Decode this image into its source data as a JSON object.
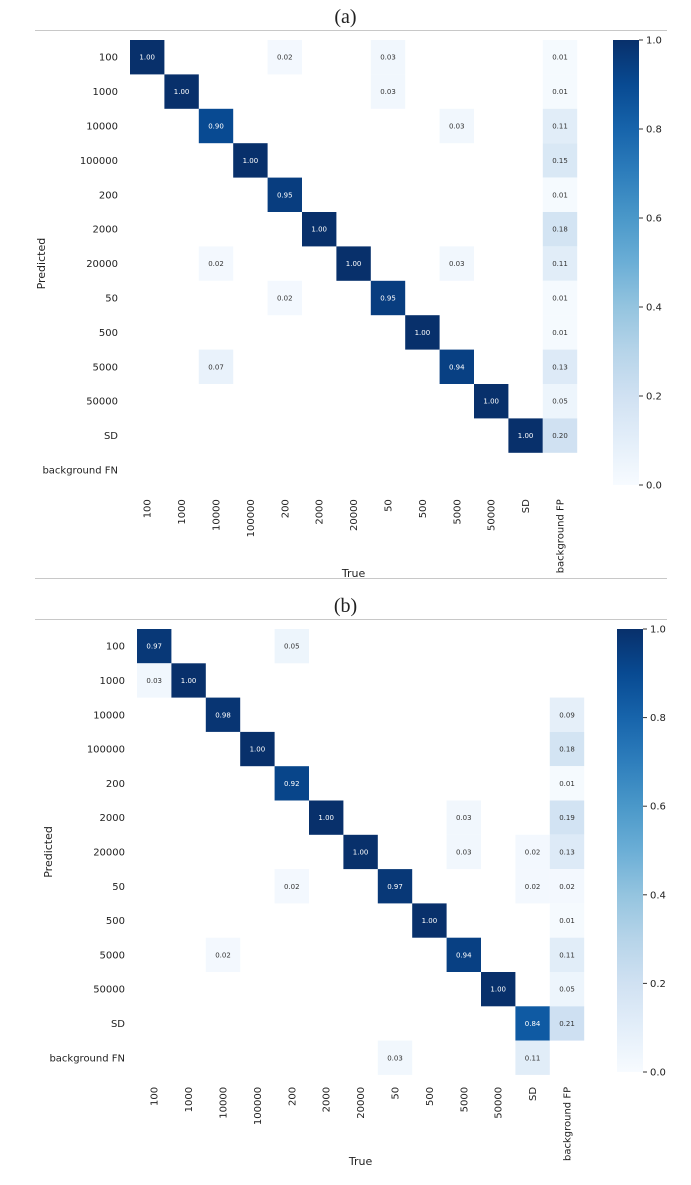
{
  "panels": [
    {
      "label": "(a)"
    },
    {
      "label": "(b)"
    }
  ],
  "chart_data": [
    {
      "type": "heatmap",
      "xlabel": "True",
      "ylabel": "Predicted",
      "x_categories": [
        "100",
        "1000",
        "10000",
        "100000",
        "200",
        "2000",
        "20000",
        "50",
        "500",
        "5000",
        "50000",
        "SD",
        "background FP"
      ],
      "y_categories": [
        "100",
        "1000",
        "10000",
        "100000",
        "200",
        "2000",
        "20000",
        "50",
        "500",
        "5000",
        "50000",
        "SD",
        "background FN"
      ],
      "colormap": "Blues",
      "colorbar": {
        "min": 0.0,
        "max": 1.0,
        "ticks": [
          "0.0",
          "0.2",
          "0.4",
          "0.6",
          "0.8",
          "1.0"
        ]
      },
      "cells": [
        [
          0,
          0,
          "1.00"
        ],
        [
          0,
          4,
          "0.02"
        ],
        [
          0,
          7,
          "0.03"
        ],
        [
          0,
          12,
          "0.01"
        ],
        [
          1,
          1,
          "1.00"
        ],
        [
          1,
          7,
          "0.03"
        ],
        [
          1,
          12,
          "0.01"
        ],
        [
          2,
          2,
          "0.90"
        ],
        [
          2,
          9,
          "0.03"
        ],
        [
          2,
          12,
          "0.11"
        ],
        [
          3,
          3,
          "1.00"
        ],
        [
          3,
          12,
          "0.15"
        ],
        [
          4,
          4,
          "0.95"
        ],
        [
          4,
          12,
          "0.01"
        ],
        [
          5,
          5,
          "1.00"
        ],
        [
          5,
          12,
          "0.18"
        ],
        [
          6,
          2,
          "0.02"
        ],
        [
          6,
          6,
          "1.00"
        ],
        [
          6,
          9,
          "0.03"
        ],
        [
          6,
          12,
          "0.11"
        ],
        [
          7,
          4,
          "0.02"
        ],
        [
          7,
          7,
          "0.95"
        ],
        [
          7,
          12,
          "0.01"
        ],
        [
          8,
          8,
          "1.00"
        ],
        [
          8,
          12,
          "0.01"
        ],
        [
          9,
          2,
          "0.07"
        ],
        [
          9,
          9,
          "0.94"
        ],
        [
          9,
          12,
          "0.13"
        ],
        [
          10,
          10,
          "1.00"
        ],
        [
          10,
          12,
          "0.05"
        ],
        [
          11,
          11,
          "1.00"
        ],
        [
          11,
          12,
          "0.20"
        ]
      ]
    },
    {
      "type": "heatmap",
      "xlabel": "True",
      "ylabel": "Predicted",
      "x_categories": [
        "100",
        "1000",
        "10000",
        "100000",
        "200",
        "2000",
        "20000",
        "50",
        "500",
        "5000",
        "50000",
        "SD",
        "background FP"
      ],
      "y_categories": [
        "100",
        "1000",
        "10000",
        "100000",
        "200",
        "2000",
        "20000",
        "50",
        "500",
        "5000",
        "50000",
        "SD",
        "background FN"
      ],
      "colormap": "Blues",
      "colorbar": {
        "min": 0.0,
        "max": 1.0,
        "ticks": [
          "0.0",
          "0.2",
          "0.4",
          "0.6",
          "0.8",
          "1.0"
        ]
      },
      "cells": [
        [
          0,
          0,
          "0.97"
        ],
        [
          0,
          4,
          "0.05"
        ],
        [
          1,
          0,
          "0.03"
        ],
        [
          1,
          1,
          "1.00"
        ],
        [
          2,
          2,
          "0.98"
        ],
        [
          2,
          12,
          "0.09"
        ],
        [
          3,
          3,
          "1.00"
        ],
        [
          3,
          12,
          "0.18"
        ],
        [
          4,
          4,
          "0.92"
        ],
        [
          4,
          12,
          "0.01"
        ],
        [
          5,
          5,
          "1.00"
        ],
        [
          5,
          9,
          "0.03"
        ],
        [
          5,
          12,
          "0.19"
        ],
        [
          6,
          6,
          "1.00"
        ],
        [
          6,
          9,
          "0.03"
        ],
        [
          6,
          11,
          "0.02"
        ],
        [
          6,
          12,
          "0.13"
        ],
        [
          7,
          4,
          "0.02"
        ],
        [
          7,
          7,
          "0.97"
        ],
        [
          7,
          11,
          "0.02"
        ],
        [
          7,
          12,
          "0.02"
        ],
        [
          8,
          8,
          "1.00"
        ],
        [
          8,
          12,
          "0.01"
        ],
        [
          9,
          2,
          "0.02"
        ],
        [
          9,
          9,
          "0.94"
        ],
        [
          9,
          12,
          "0.11"
        ],
        [
          10,
          10,
          "1.00"
        ],
        [
          10,
          12,
          "0.05"
        ],
        [
          11,
          11,
          "0.84"
        ],
        [
          11,
          12,
          "0.21"
        ],
        [
          12,
          7,
          "0.03"
        ],
        [
          12,
          11,
          "0.11"
        ]
      ]
    }
  ]
}
